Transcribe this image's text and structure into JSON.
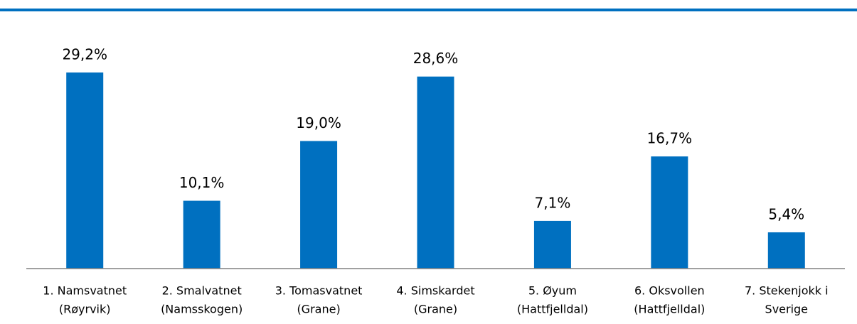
{
  "chart_data": {
    "type": "bar",
    "categories": [
      [
        "1. Namsvatnet",
        "(Røyrvik)"
      ],
      [
        "2. Smalvatnet",
        "(Namsskogen)"
      ],
      [
        "3. Tomasvatnet",
        "(Grane)"
      ],
      [
        "4. Simskardet",
        "(Grane)"
      ],
      [
        "5. Øyum",
        "(Hattfjelldal)"
      ],
      [
        "6. Oksvollen",
        "(Hattfjelldal)"
      ],
      [
        "7. Stekenjokk i",
        "Sverige"
      ]
    ],
    "values": [
      29.2,
      10.1,
      19.0,
      28.6,
      7.1,
      16.7,
      5.4
    ],
    "value_labels": [
      "29,2%",
      "10,1%",
      "19,0%",
      "28,6%",
      "7,1%",
      "16,7%",
      "5,4%"
    ],
    "color": "#0070c0",
    "ylim": [
      0,
      40
    ]
  }
}
